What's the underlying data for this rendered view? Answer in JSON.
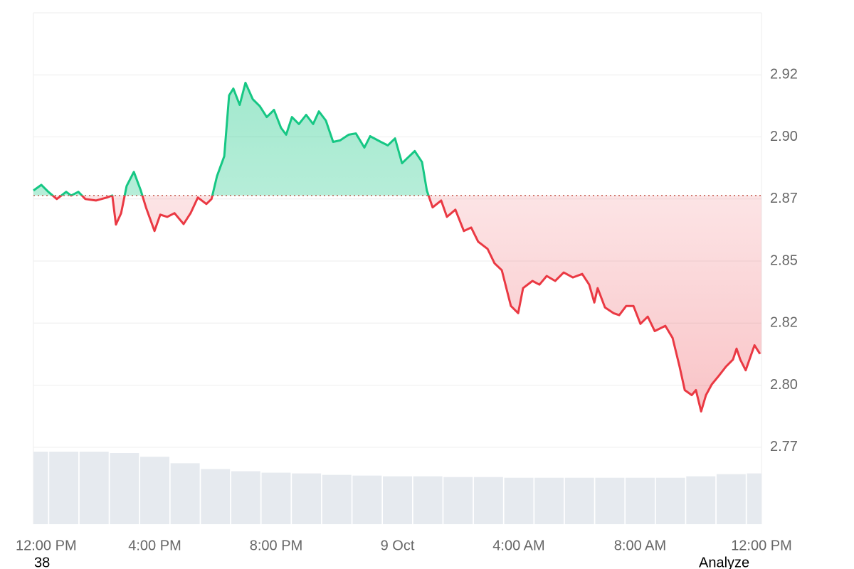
{
  "chart_data": {
    "type": "line",
    "xlim": [
      0,
      24
    ],
    "ylim": [
      2.744,
      2.95
    ],
    "xticks": [
      {
        "value": 0,
        "label": "12:00 PM"
      },
      {
        "value": 4,
        "label": "4:00 PM"
      },
      {
        "value": 8,
        "label": "8:00 PM"
      },
      {
        "value": 12,
        "label": "9 Oct"
      },
      {
        "value": 16,
        "label": "4:00 AM"
      },
      {
        "value": 20,
        "label": "8:00 AM"
      },
      {
        "value": 24,
        "label": "12:00 PM"
      }
    ],
    "yticks": [
      {
        "value": 2.775,
        "label": "2.77"
      },
      {
        "value": 2.8,
        "label": "2.80"
      },
      {
        "value": 2.825,
        "label": "2.82"
      },
      {
        "value": 2.85,
        "label": "2.85"
      },
      {
        "value": 2.875,
        "label": "2.87"
      },
      {
        "value": 2.9,
        "label": "2.90"
      },
      {
        "value": 2.925,
        "label": "2.92"
      }
    ],
    "grid": true,
    "baseline": 2.8764,
    "up_color": "#16c784",
    "down_color": "#ea3943",
    "x": [
      0,
      0.26,
      0.49,
      0.77,
      1.08,
      1.24,
      1.48,
      1.71,
      2.06,
      2.42,
      2.6,
      2.72,
      2.89,
      3.07,
      3.31,
      3.54,
      3.71,
      3.99,
      4.18,
      4.41,
      4.65,
      4.95,
      5.18,
      5.42,
      5.7,
      5.87,
      6.05,
      6.29,
      6.45,
      6.59,
      6.8,
      6.99,
      7.23,
      7.46,
      7.69,
      7.93,
      8.16,
      8.33,
      8.52,
      8.75,
      8.99,
      9.22,
      9.41,
      9.64,
      9.88,
      10.11,
      10.39,
      10.63,
      10.91,
      11.1,
      11.45,
      11.68,
      11.92,
      12.15,
      12.39,
      12.57,
      12.81,
      12.97,
      13.16,
      13.44,
      13.63,
      13.91,
      14.19,
      14.43,
      14.66,
      14.97,
      15.2,
      15.44,
      15.74,
      15.98,
      16.14,
      16.45,
      16.68,
      16.92,
      17.2,
      17.48,
      17.78,
      18.09,
      18.32,
      18.49,
      18.6,
      18.84,
      19.12,
      19.31,
      19.54,
      19.78,
      20.01,
      20.25,
      20.48,
      20.83,
      21.07,
      21.3,
      21.47,
      21.7,
      21.84,
      22.01,
      22.17,
      22.36,
      22.59,
      22.83,
      23.06,
      23.18,
      23.3,
      23.48,
      23.77,
      23.95
    ],
    "values": [
      2.8784,
      2.8807,
      2.8779,
      2.875,
      2.8779,
      2.8764,
      2.8779,
      2.875,
      2.8744,
      2.8756,
      2.8764,
      2.8647,
      2.8693,
      2.8802,
      2.8859,
      2.8784,
      2.8716,
      2.8621,
      2.8687,
      2.8678,
      2.8693,
      2.8649,
      2.8693,
      2.8756,
      2.873,
      2.875,
      2.8842,
      2.8922,
      2.9167,
      2.9195,
      2.9129,
      2.9218,
      2.9152,
      2.9124,
      2.908,
      2.9109,
      2.9037,
      2.9009,
      2.908,
      2.9052,
      2.9089,
      2.9052,
      2.9103,
      2.9066,
      2.898,
      2.8986,
      2.9009,
      2.9014,
      2.8957,
      2.9003,
      2.898,
      2.8966,
      2.8994,
      2.8894,
      2.8922,
      2.8943,
      2.8899,
      2.8784,
      2.8716,
      2.8744,
      2.8678,
      2.8707,
      2.8621,
      2.8635,
      2.8578,
      2.8549,
      2.8491,
      2.8463,
      2.8319,
      2.829,
      2.8391,
      2.842,
      2.8405,
      2.844,
      2.842,
      2.8454,
      2.8434,
      2.8448,
      2.8405,
      2.8333,
      2.8391,
      2.8313,
      2.829,
      2.8282,
      2.8319,
      2.8319,
      2.8247,
      2.8276,
      2.8218,
      2.8239,
      2.819,
      2.8075,
      2.798,
      2.796,
      2.798,
      2.7894,
      2.796,
      2.8003,
      2.8037,
      2.8075,
      2.8103,
      2.8147,
      2.8103,
      2.806,
      2.8161,
      2.8126
    ],
    "volume": {
      "color": "#e6eaef",
      "lim": [
        0,
        100
      ],
      "x": [
        0,
        1,
        2,
        3,
        4,
        5,
        6,
        7,
        8,
        9,
        10,
        11,
        12,
        13,
        14,
        15,
        16,
        17,
        18,
        19,
        20,
        21,
        22,
        23,
        24
      ],
      "values": [
        100,
        100,
        100,
        98,
        93,
        84,
        76,
        73,
        71,
        70,
        68,
        67,
        66,
        66,
        65,
        65,
        64,
        64,
        64,
        64,
        64,
        64,
        66,
        69,
        70
      ]
    }
  },
  "footer": {
    "left": "38",
    "right": "Analyze"
  }
}
